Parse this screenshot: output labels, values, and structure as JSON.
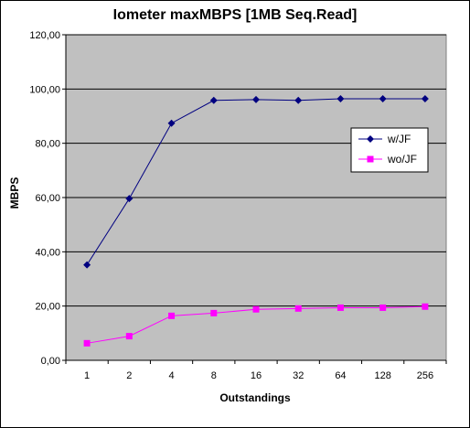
{
  "chart_data": {
    "type": "line",
    "title": "Iometer maxMBPS [1MB Seq.Read]",
    "xlabel": "Outstandings",
    "ylabel": "MBPS",
    "categories": [
      "1",
      "2",
      "4",
      "8",
      "16",
      "32",
      "64",
      "128",
      "256"
    ],
    "ylim": [
      0,
      120
    ],
    "yticks": [
      "0,00",
      "20,00",
      "40,00",
      "60,00",
      "80,00",
      "100,00",
      "120,00"
    ],
    "grid": true,
    "legend_position": "right",
    "plot_background": "#c0c0c0",
    "series": [
      {
        "name": "w/JF",
        "color": "#000080",
        "marker": "diamond",
        "values": [
          35.2,
          59.6,
          87.4,
          95.8,
          96.1,
          95.8,
          96.4,
          96.4,
          96.4
        ]
      },
      {
        "name": "wo/JF",
        "color": "#ff00ff",
        "marker": "square",
        "values": [
          6.3,
          8.9,
          16.4,
          17.4,
          18.8,
          19.1,
          19.4,
          19.4,
          19.8
        ]
      }
    ]
  }
}
